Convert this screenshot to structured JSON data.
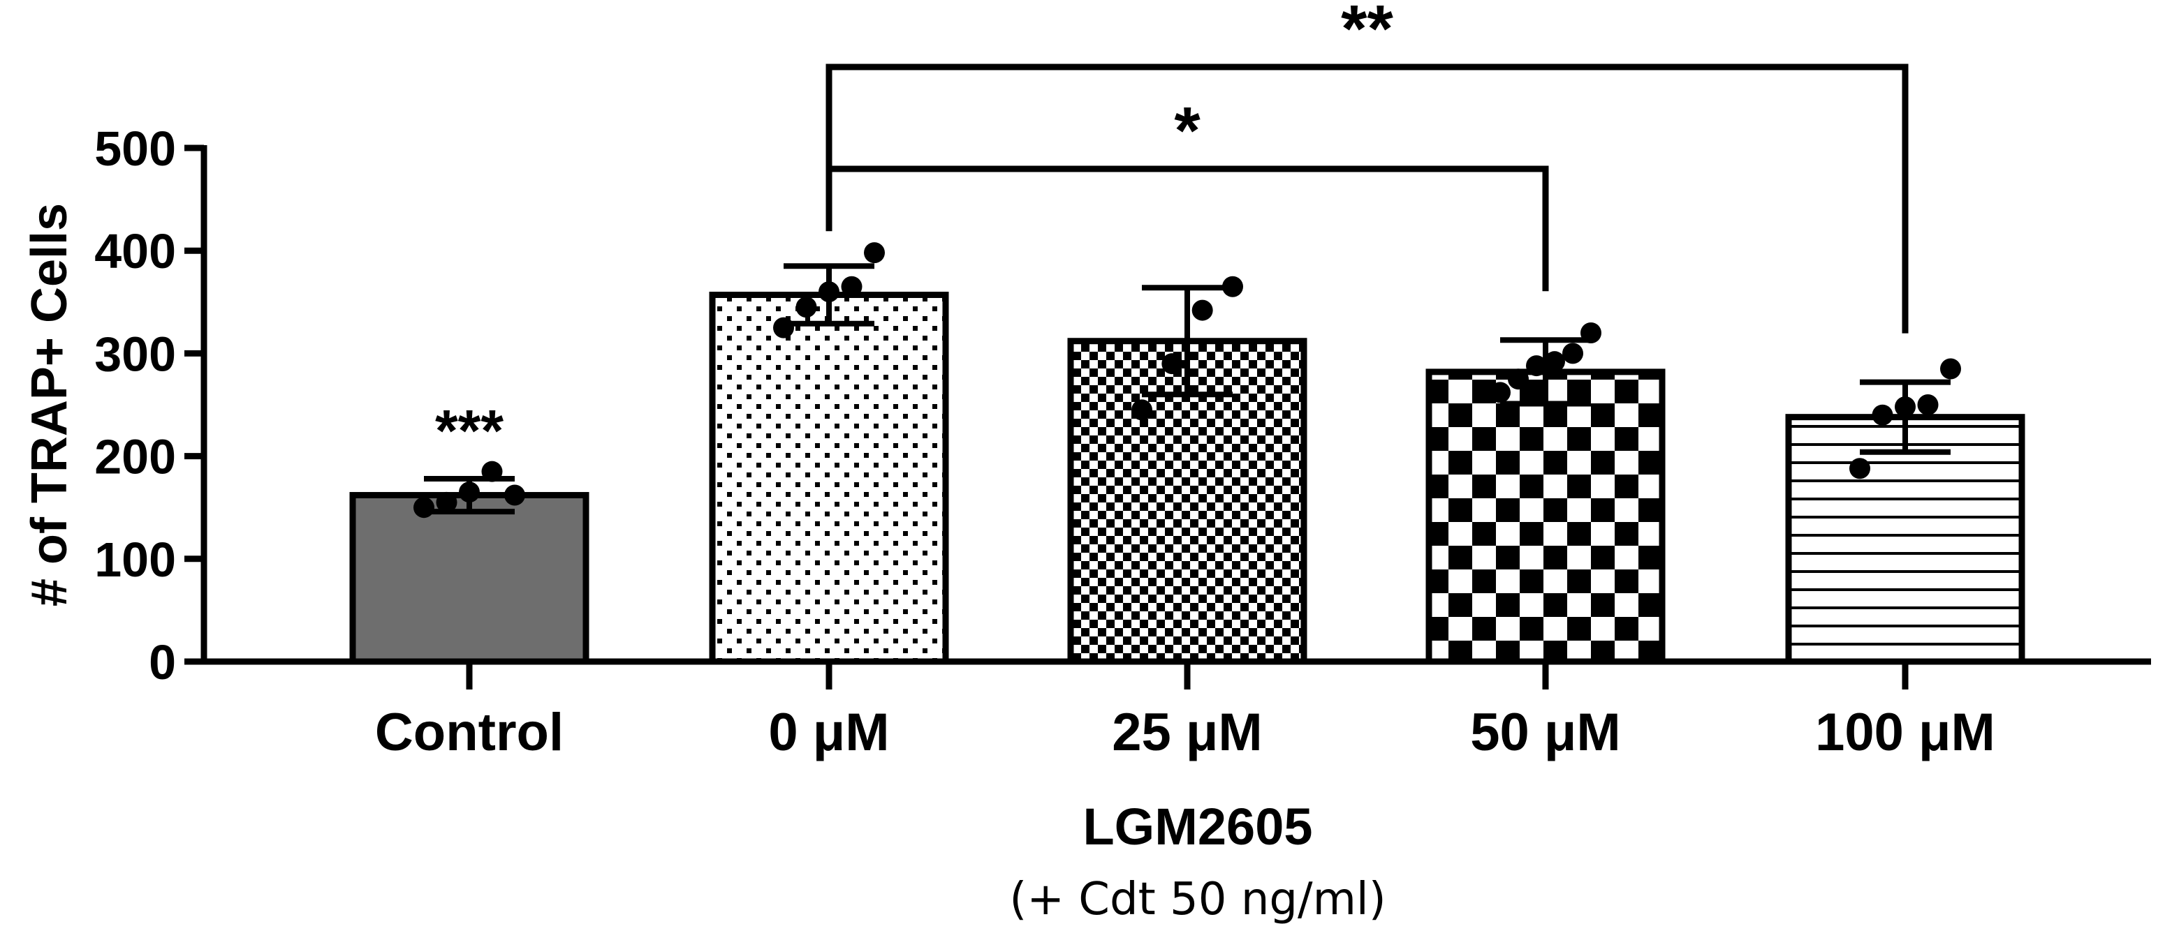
{
  "chart_data": {
    "type": "bar",
    "ylabel": "# of TRAP+ Cells",
    "xlabel": "LGM2605",
    "xlabel_sub": "(+ Cdt 50 ng/ml)",
    "ylim": [
      0,
      500
    ],
    "yticks": [
      "0",
      "100",
      "200",
      "300",
      "400",
      "500"
    ],
    "categories": [
      "Control",
      "0 μM",
      "25 μM",
      "50 μM",
      "100 μM"
    ],
    "values": [
      162,
      357,
      312,
      282,
      238
    ],
    "error": [
      16,
      28,
      52,
      31,
      34
    ],
    "points": [
      [
        150,
        155,
        165,
        185,
        162
      ],
      [
        325,
        345,
        360,
        365,
        398
      ],
      [
        245,
        290,
        342,
        365
      ],
      [
        262,
        275,
        288,
        292,
        300,
        320
      ],
      [
        188,
        240,
        248,
        250,
        285
      ]
    ],
    "patterns": [
      "solid-gray",
      "sparse-dots",
      "fine-checker",
      "coarse-checker",
      "horizontal-lines"
    ],
    "bar_fill_solid": "#6e6e6e",
    "annotations": [
      {
        "label": "***",
        "category": "Control"
      },
      {
        "label": "*",
        "from": "0 μM",
        "to": "50 μM"
      },
      {
        "label": "**",
        "from": "0 μM",
        "to": "100 μM"
      }
    ]
  }
}
